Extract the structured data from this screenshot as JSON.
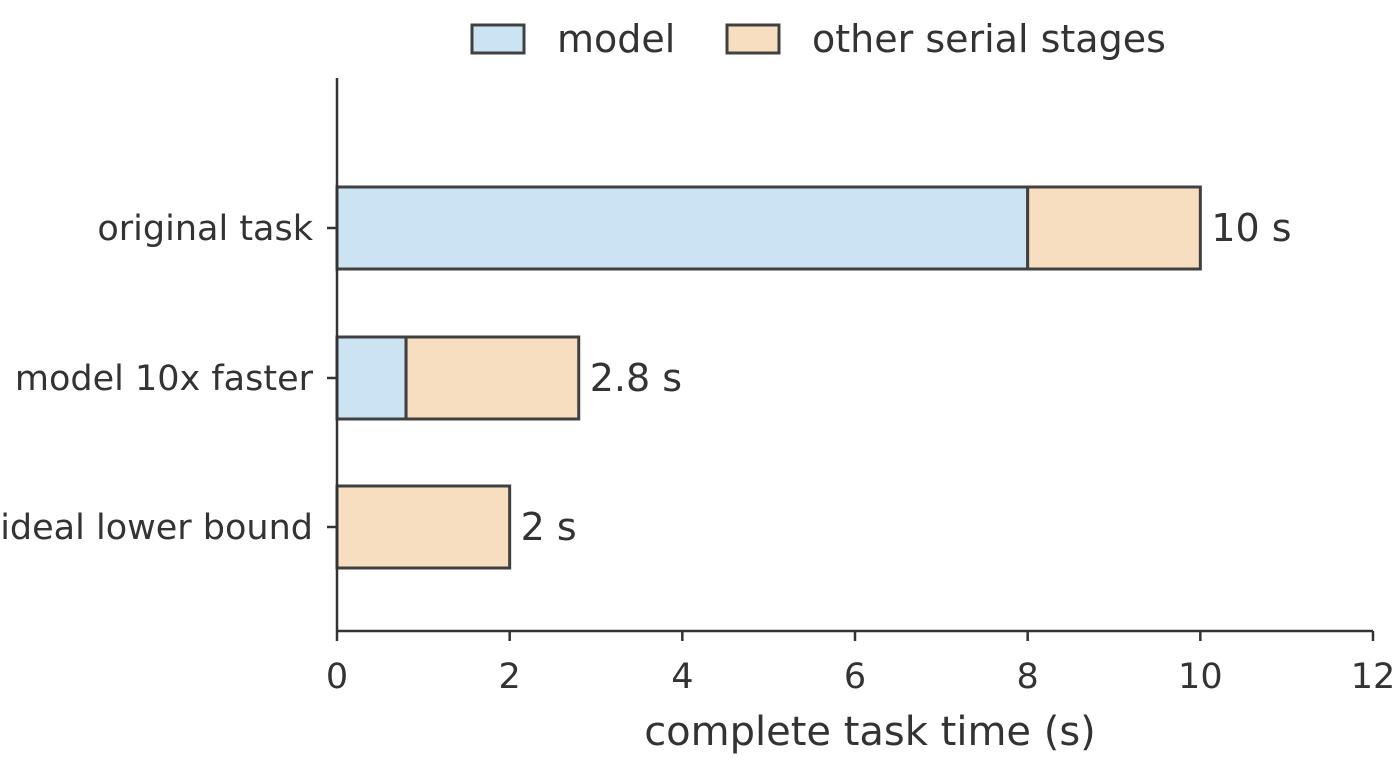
{
  "chart_data": {
    "type": "bar",
    "orientation": "horizontal",
    "stacked": true,
    "categories": [
      "original task",
      "model 10x faster",
      "ideal lower bound"
    ],
    "series": [
      {
        "name": "model",
        "values": [
          8,
          0.8,
          0
        ],
        "color": "#cce3f3"
      },
      {
        "name": "other serial stages",
        "values": [
          2,
          2,
          2
        ],
        "color": "#f8dec1"
      }
    ],
    "totals_labels": [
      "10 s",
      "2.8 s",
      "2 s"
    ],
    "xlabel": "complete task time (s)",
    "ylabel": "",
    "xlim": [
      0,
      12
    ],
    "xticks": [
      0,
      2,
      4,
      6,
      8,
      10,
      12
    ],
    "edge_color": "#404040",
    "axis_color": "#333333",
    "grid": false,
    "legend_position": "top"
  }
}
